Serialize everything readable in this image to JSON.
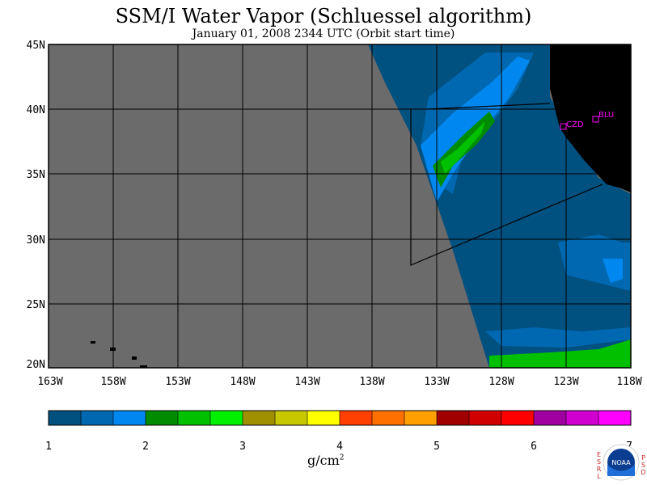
{
  "header": {
    "title": "SSM/I Water Vapor (Schluessel algorithm)",
    "subtitle": "January 01, 2008  2344 UTC  (Orbit start time)"
  },
  "map": {
    "lat_ticks": [
      "45N",
      "40N",
      "35N",
      "30N",
      "25N",
      "20N"
    ],
    "lon_ticks": [
      "163W",
      "158W",
      "153W",
      "148W",
      "143W",
      "138W",
      "133W",
      "128W",
      "123W",
      "118W"
    ],
    "stations": [
      {
        "code": "CZD"
      },
      {
        "code": "BLU"
      }
    ],
    "colors": {
      "nodata": "#6b6b6b",
      "land": "#000000",
      "station": "#ff00ff",
      "grid": "#000000"
    }
  },
  "colorbar": {
    "colors": [
      "#005080",
      "#0068b0",
      "#0088f0",
      "#008c00",
      "#00c000",
      "#00f000",
      "#a09000",
      "#c8c800",
      "#ffff00",
      "#ff4000",
      "#ff7000",
      "#ffa000",
      "#a00000",
      "#d00000",
      "#ff0000",
      "#a000a0",
      "#d000d0",
      "#ff00ff"
    ],
    "labels": [
      "1",
      "2",
      "3",
      "4",
      "5",
      "6",
      "7"
    ],
    "unit_label": "g/cm",
    "unit_exp": "2"
  },
  "logo": {
    "left_letters": "ESRL",
    "right_letters": "PSD",
    "center_text": "NOAA"
  }
}
